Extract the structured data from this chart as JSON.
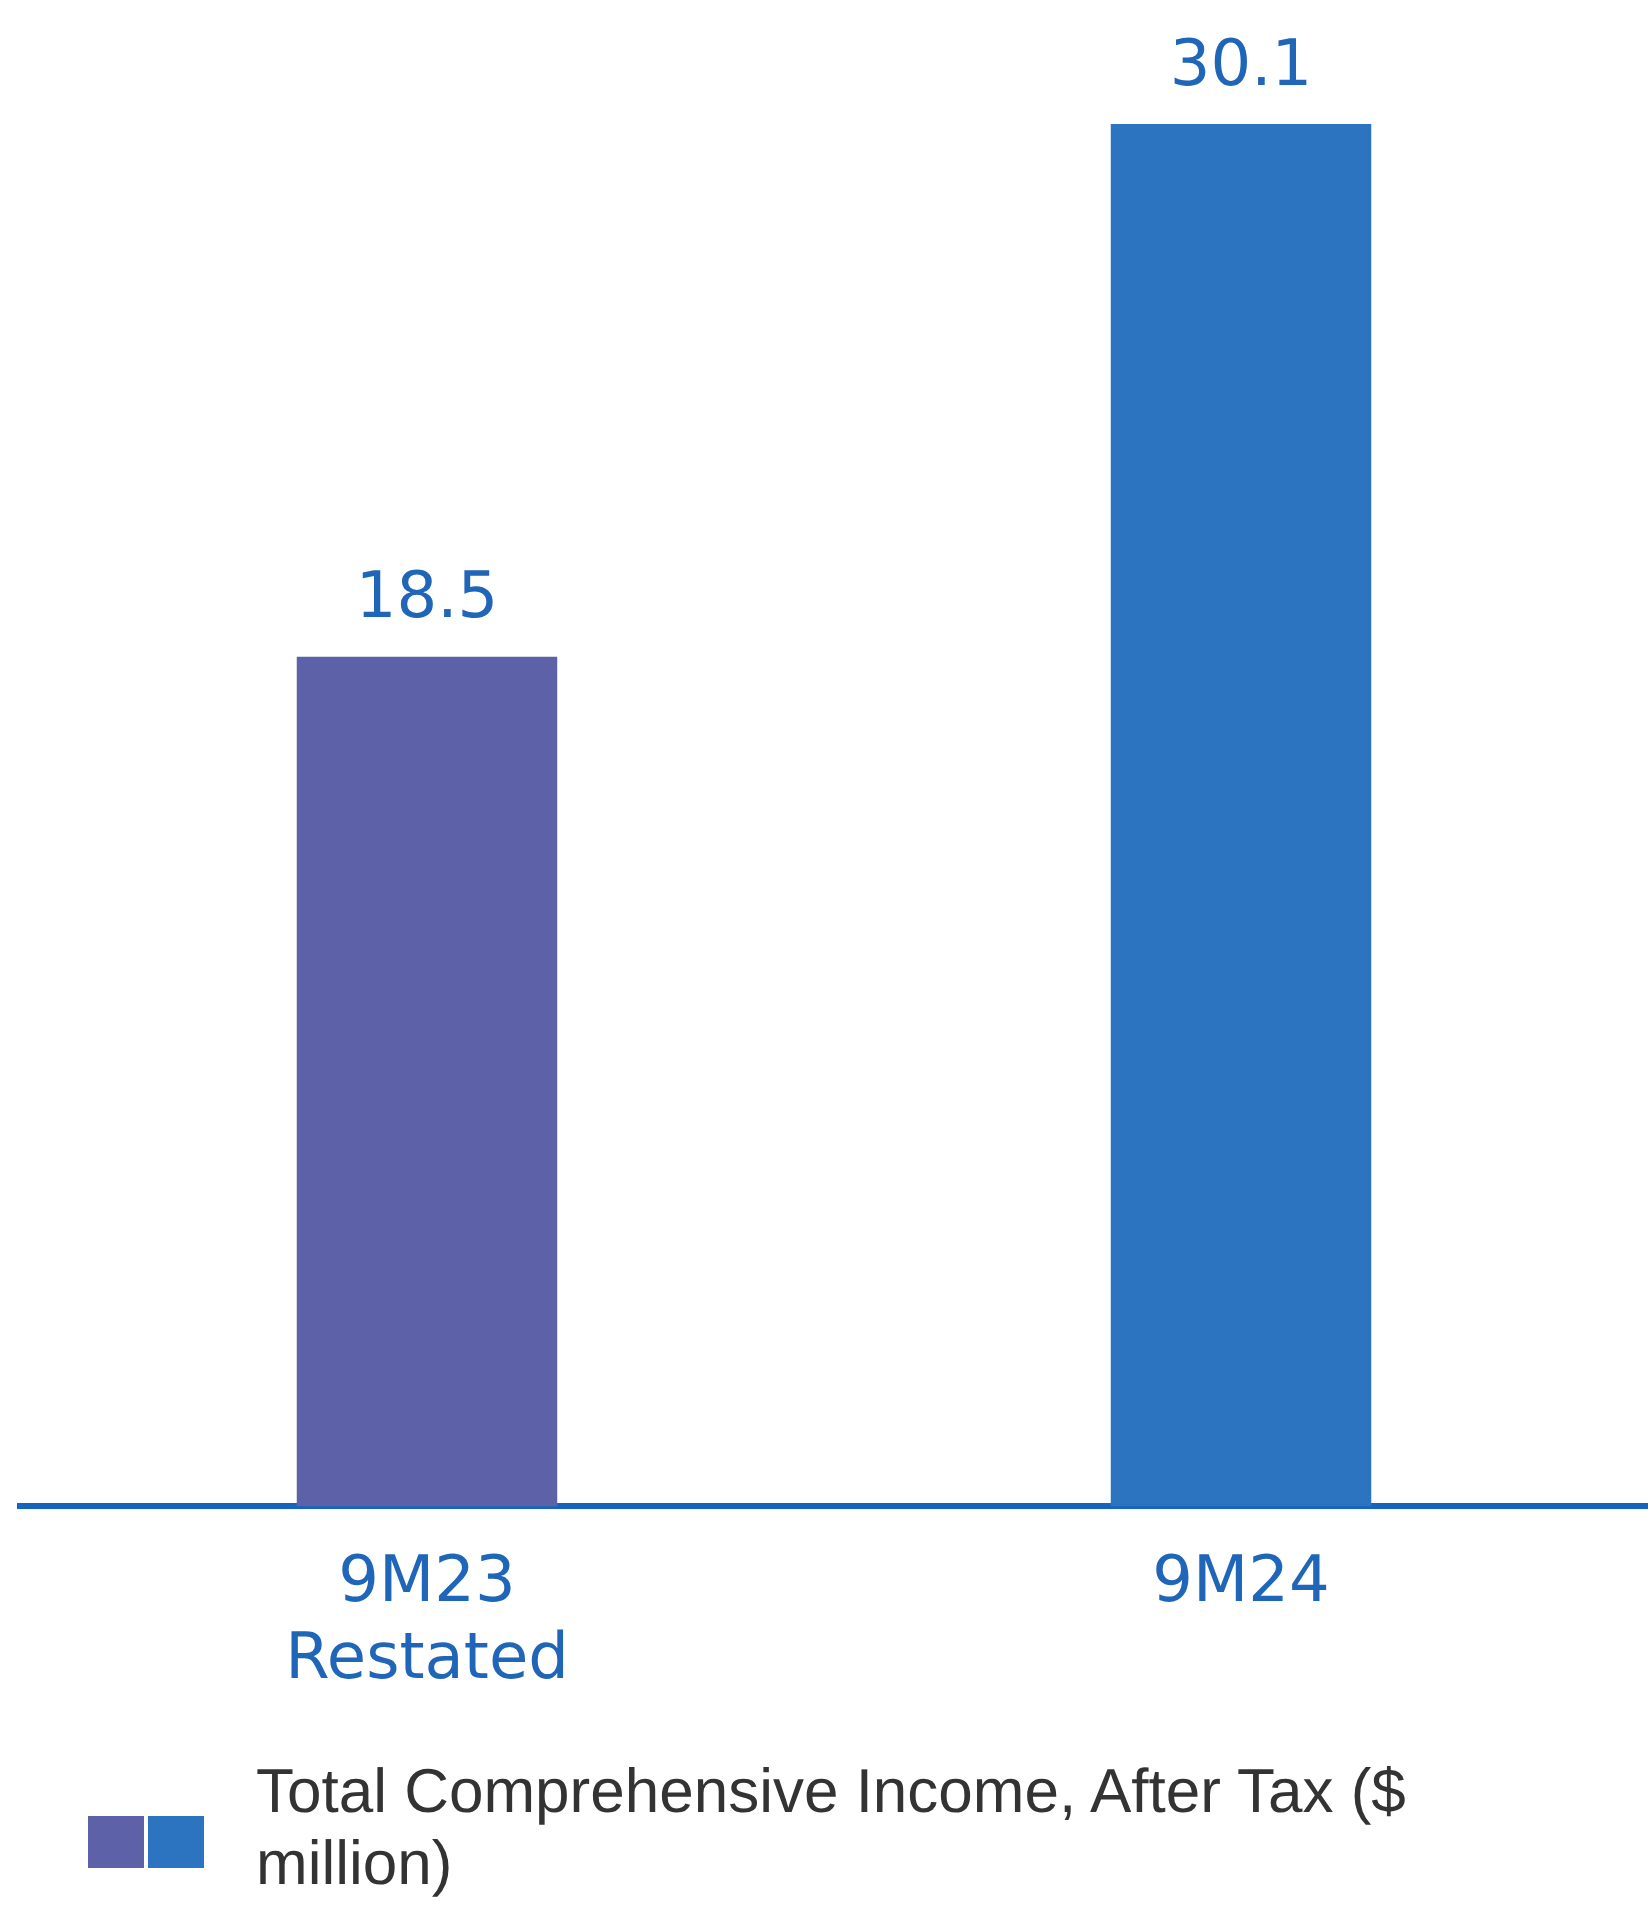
{
  "chart_data": {
    "type": "bar",
    "categories": [
      "9M23 Restated",
      "9M24"
    ],
    "series": [
      {
        "name": "Total Comprehensive Income, After Tax ($ million)",
        "colors": [
          "#5d62a8",
          "#2c74bf"
        ],
        "values": [
          18.5,
          30.1
        ]
      }
    ],
    "tick_labels": "x",
    "grid": false,
    "legend": "bottom left",
    "data_labels": true
  }
}
